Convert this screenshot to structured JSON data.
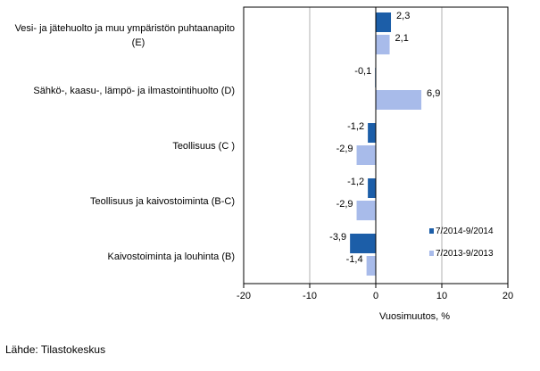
{
  "chart_data": {
    "type": "bar",
    "orientation": "horizontal",
    "categories": [
      [
        "Vesi- ja jätehuolto ja muu ympäristön puhtaanapito",
        "(E)"
      ],
      [
        "Sähkö-, kaasu-, lämpö- ja ilmastointihuolto (D)"
      ],
      [
        "Teollisuus (C )"
      ],
      [
        "Teollisuus ja kaivostoiminta (B-C)"
      ],
      [
        "Kaivostoiminta ja louhinta (B)"
      ]
    ],
    "series": [
      {
        "name": "7/2014-9/2014",
        "color": "#1c5ea8",
        "values": [
          2.3,
          -0.1,
          -1.2,
          -1.2,
          -3.9
        ],
        "labels": [
          "2,3",
          "-0,1",
          "-1,2",
          "-1,2",
          "-3,9"
        ]
      },
      {
        "name": "7/2013-9/2013",
        "color": "#a8bbea",
        "values": [
          2.1,
          6.9,
          -2.9,
          -2.9,
          -1.4
        ],
        "labels": [
          "2,1",
          "6,9",
          "-2,9",
          "-2,9",
          "-1,4"
        ]
      }
    ],
    "xlabel": "Vuosimuutos, %",
    "xlim": [
      -20,
      20
    ],
    "xticks": [
      -20,
      -10,
      0,
      10,
      20
    ],
    "grid": "vertical",
    "legend": "bottom-right"
  },
  "source": "Lähde: Tilastokeskus"
}
